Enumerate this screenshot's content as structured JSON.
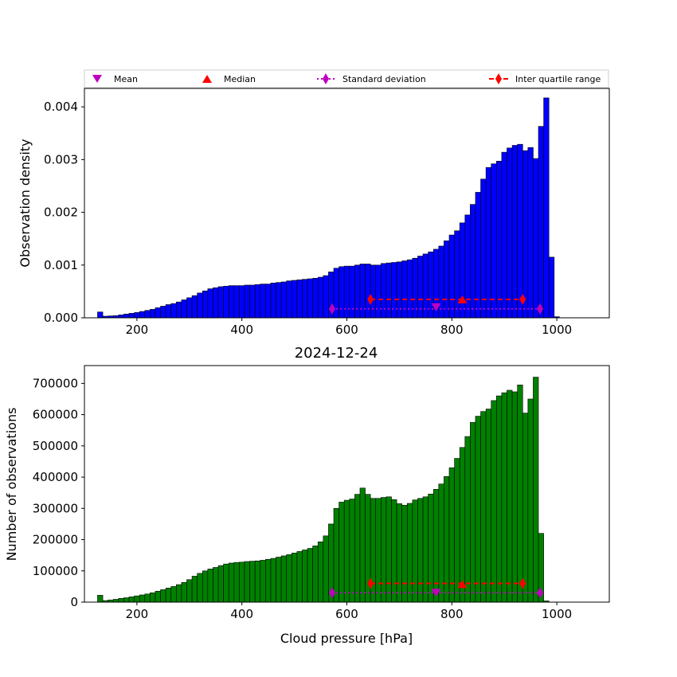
{
  "colors": {
    "top_bars": "#0000ff",
    "bottom_bars": "#008000",
    "mean": "#bf00bf",
    "median": "#ff0000",
    "std": "#bf00bf",
    "iqr": "#ff0000"
  },
  "legend": {
    "placement": "top, above upper panel",
    "entries": [
      {
        "label": "Mean",
        "marker": "triangle-down"
      },
      {
        "label": "Median",
        "marker": "triangle-up"
      },
      {
        "label": "Standard deviation",
        "marker": "diamond-dotted-line"
      },
      {
        "label": "Inter quartile range",
        "marker": "diamond-dashed-line"
      }
    ]
  },
  "chart_data": [
    {
      "type": "bar",
      "title": "",
      "xlabel": "",
      "ylabel": "Observation density",
      "xlim": [
        100,
        1100
      ],
      "ylim": [
        0,
        0.00435
      ],
      "xticks": [
        "200",
        "400",
        "600",
        "800",
        "1000"
      ],
      "yticks": [
        "0.000",
        "0.001",
        "0.002",
        "0.003",
        "0.004"
      ],
      "bin_start": 125,
      "bin_width": 10,
      "values": [
        0.00011,
        3e-05,
        3.5e-05,
        4e-05,
        5.5e-05,
        7e-05,
        8.5e-05,
        0.0001,
        0.00012,
        0.00014,
        0.00016,
        0.00019,
        0.00022,
        0.00025,
        0.00027,
        0.0003,
        0.00034,
        0.00038,
        0.00042,
        0.00047,
        0.00051,
        0.00055,
        0.00057,
        0.00059,
        0.0006,
        0.00061,
        0.00061,
        0.00061,
        0.00062,
        0.00062,
        0.00063,
        0.00064,
        0.00064,
        0.00066,
        0.00067,
        0.00068,
        0.0007,
        0.00071,
        0.00072,
        0.00073,
        0.00074,
        0.00075,
        0.00077,
        0.0008,
        0.00087,
        0.00094,
        0.00097,
        0.00098,
        0.00098,
        0.001,
        0.00102,
        0.00102,
        0.001,
        0.001,
        0.00103,
        0.00104,
        0.00105,
        0.00106,
        0.00108,
        0.0011,
        0.00113,
        0.00117,
        0.00121,
        0.00125,
        0.0013,
        0.00136,
        0.00146,
        0.00157,
        0.00165,
        0.0018,
        0.00195,
        0.00215,
        0.00238,
        0.00263,
        0.00285,
        0.00292,
        0.00297,
        0.00314,
        0.00322,
        0.00327,
        0.00329,
        0.00317,
        0.00323,
        0.00302,
        0.00363,
        0.00417,
        0.00115,
        2e-05
      ],
      "stats": {
        "mean": 770,
        "median": 820,
        "std_range": [
          572,
          968
        ],
        "iqr_range": [
          645,
          935
        ],
        "marker_y_mean": 0.0002,
        "marker_y_median": 0.00035,
        "y_std": 0.00017,
        "y_iqr": 0.00035
      }
    },
    {
      "type": "bar",
      "title": "2024-12-24",
      "xlabel": "Cloud pressure [hPa]",
      "ylabel": "Number of observations",
      "xlim": [
        100,
        1100
      ],
      "ylim": [
        0,
        757000
      ],
      "xticks": [
        "200",
        "400",
        "600",
        "800",
        "1000"
      ],
      "yticks": [
        "0",
        "100000",
        "200000",
        "300000",
        "400000",
        "500000",
        "600000",
        "700000"
      ],
      "bin_start": 125,
      "bin_width": 10,
      "values": [
        22000,
        5000,
        7000,
        9000,
        12000,
        14000,
        17000,
        20000,
        23000,
        26000,
        30000,
        35000,
        40000,
        45000,
        50000,
        56000,
        63000,
        72000,
        83000,
        92000,
        100000,
        106000,
        111000,
        117000,
        122000,
        125000,
        127000,
        128000,
        130000,
        131000,
        132000,
        134000,
        137000,
        140000,
        144000,
        148000,
        152000,
        157000,
        162000,
        167000,
        172000,
        180000,
        193000,
        212000,
        250000,
        300000,
        320000,
        326000,
        330000,
        345000,
        365000,
        345000,
        332000,
        332000,
        335000,
        337000,
        328000,
        315000,
        310000,
        316000,
        327000,
        332000,
        337000,
        346000,
        361000,
        378000,
        402000,
        430000,
        460000,
        495000,
        530000,
        575000,
        595000,
        610000,
        618000,
        645000,
        660000,
        670000,
        678000,
        673000,
        695000,
        605000,
        650000,
        720000,
        220000,
        4000
      ],
      "stats": {
        "mean": 770,
        "median": 820,
        "std_range": [
          572,
          968
        ],
        "iqr_range": [
          645,
          935
        ],
        "marker_y_mean": 30000,
        "marker_y_median": 58000,
        "y_std": 30000,
        "y_iqr": 60000
      }
    }
  ]
}
